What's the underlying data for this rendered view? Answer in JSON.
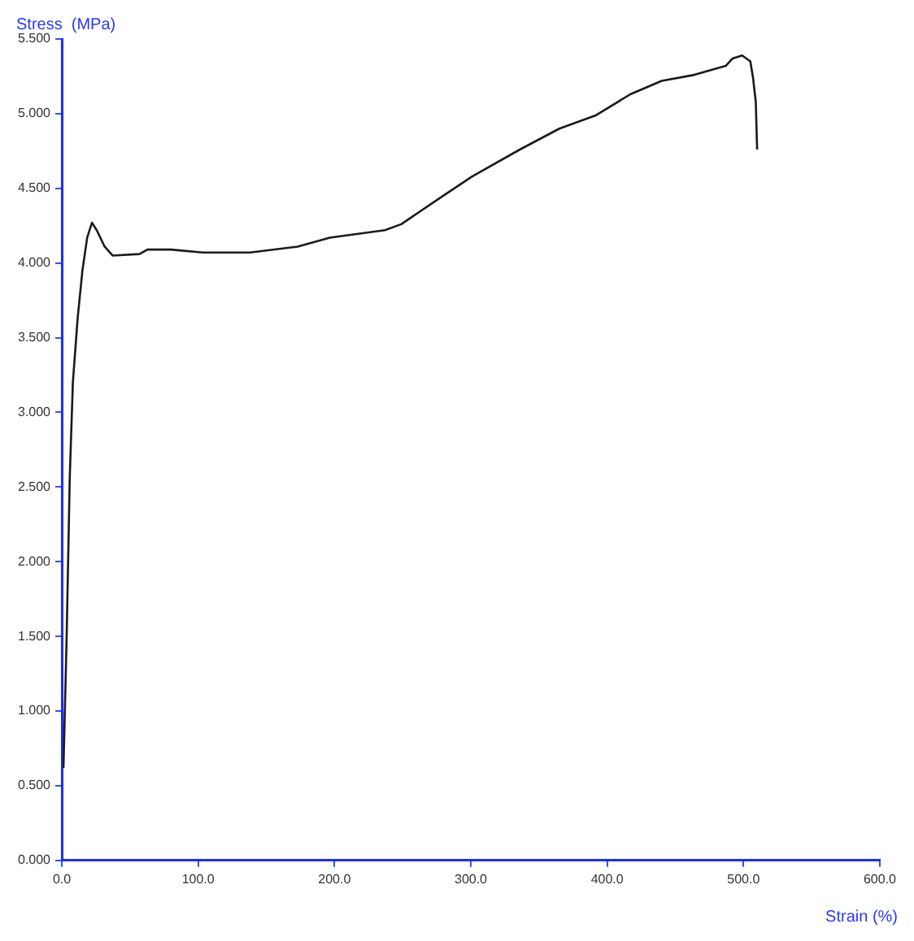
{
  "chart_data": {
    "type": "line",
    "xlabel": "Strain (%)",
    "ylabel": "Stress  (MPa)",
    "series": [
      {
        "color": "#1a1a1a",
        "x": [
          1.2,
          3.5,
          5.8,
          8.1,
          11.6,
          15.1,
          18.6,
          22.1,
          25.6,
          31.4,
          37.2,
          57,
          62.8,
          80,
          103.5,
          138,
          173,
          196.5,
          237,
          249,
          278,
          301,
          336,
          365,
          392,
          417,
          440,
          464,
          487,
          492,
          499,
          505,
          507,
          509,
          510
        ],
        "values": [
          0.62,
          1.48,
          2.56,
          3.2,
          3.63,
          3.95,
          4.17,
          4.27,
          4.22,
          4.11,
          4.05,
          4.06,
          4.09,
          4.09,
          4.07,
          4.07,
          4.11,
          4.17,
          4.22,
          4.26,
          4.44,
          4.58,
          4.76,
          4.9,
          4.99,
          5.13,
          5.22,
          5.26,
          5.32,
          5.37,
          5.39,
          5.35,
          5.24,
          5.08,
          4.76
        ]
      }
    ],
    "xlim": [
      0,
      600
    ],
    "xticks": [
      {
        "value": 0,
        "label": "0.0"
      },
      {
        "value": 100,
        "label": "100.0"
      },
      {
        "value": 200,
        "label": "200.0"
      },
      {
        "value": 300,
        "label": "300.0"
      },
      {
        "value": 400,
        "label": "400.0"
      },
      {
        "value": 500,
        "label": "500.0"
      },
      {
        "value": 600,
        "label": "600.0"
      }
    ],
    "ylim": [
      0,
      5.5
    ],
    "yticks": [
      {
        "value": 0,
        "label": "0.000"
      },
      {
        "value": 0.5,
        "label": "0.500"
      },
      {
        "value": 1,
        "label": "1.000"
      },
      {
        "value": 1.5,
        "label": "1.500"
      },
      {
        "value": 2,
        "label": "2.000"
      },
      {
        "value": 2.5,
        "label": "2.500"
      },
      {
        "value": 3,
        "label": "3.000"
      },
      {
        "value": 3.5,
        "label": "3.500"
      },
      {
        "value": 4,
        "label": "4.000"
      },
      {
        "value": 4.5,
        "label": "4.500"
      },
      {
        "value": 5,
        "label": "5.000"
      },
      {
        "value": 5.5,
        "label": "5.500"
      }
    ],
    "grid": false,
    "legend": false,
    "marker": "none",
    "line_style": "solid"
  }
}
